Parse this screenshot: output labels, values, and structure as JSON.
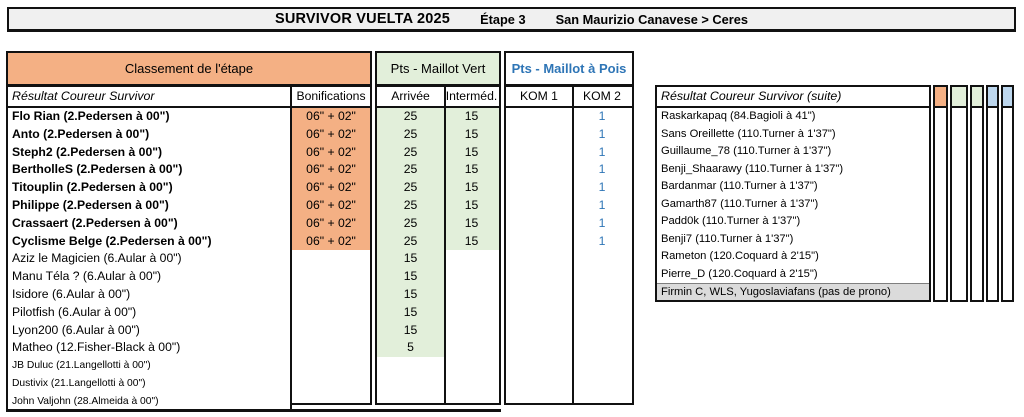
{
  "banner": {
    "title": "SURVIVOR VUELTA 2025",
    "stage_label": "Étape 3",
    "route": "San Maurizio Canavese > Ceres"
  },
  "left_table": {
    "group_headers": {
      "classement": "Classement de l'étape",
      "maillot_vert": "Pts - Maillot Vert",
      "maillot_pois": "Pts - Maillot à Pois"
    },
    "columns": {
      "resultat": "Résultat  Coureur Survivor",
      "bonifications": "Bonifications",
      "arrivee": "Arrivée",
      "intermediaire": "Interméd.",
      "kom1": "KOM 1",
      "kom2": "KOM 2"
    },
    "rows": [
      {
        "name": "Flo Rian (2.Pedersen à 00\")",
        "style": "bold",
        "bonif": "06\" + 02\"",
        "arrivee": "25",
        "intermed": "15",
        "kom1": "",
        "kom2": "1"
      },
      {
        "name": "Anto (2.Pedersen à 00\")",
        "style": "bold",
        "bonif": "06\" + 02\"",
        "arrivee": "25",
        "intermed": "15",
        "kom1": "",
        "kom2": "1"
      },
      {
        "name": "Steph2 (2.Pedersen à 00\")",
        "style": "bold",
        "bonif": "06\" + 02\"",
        "arrivee": "25",
        "intermed": "15",
        "kom1": "",
        "kom2": "1"
      },
      {
        "name": "BertholleS (2.Pedersen à 00\")",
        "style": "bold",
        "bonif": "06\" + 02\"",
        "arrivee": "25",
        "intermed": "15",
        "kom1": "",
        "kom2": "1"
      },
      {
        "name": "Titouplin (2.Pedersen à 00\")",
        "style": "bold",
        "bonif": "06\" + 02\"",
        "arrivee": "25",
        "intermed": "15",
        "kom1": "",
        "kom2": "1"
      },
      {
        "name": "Philippe (2.Pedersen à 00\")",
        "style": "bold",
        "bonif": "06\" + 02\"",
        "arrivee": "25",
        "intermed": "15",
        "kom1": "",
        "kom2": "1"
      },
      {
        "name": "Crassaert (2.Pedersen à 00\")",
        "style": "bold",
        "bonif": "06\" + 02\"",
        "arrivee": "25",
        "intermed": "15",
        "kom1": "",
        "kom2": "1"
      },
      {
        "name": "Cyclisme Belge (2.Pedersen à 00\")",
        "style": "bold",
        "bonif": "06\" + 02\"",
        "arrivee": "25",
        "intermed": "15",
        "kom1": "",
        "kom2": "1"
      },
      {
        "name": "Aziz le Magicien (6.Aular à 00\")",
        "style": "normal",
        "bonif": "",
        "arrivee": "15",
        "intermed": "",
        "kom1": "",
        "kom2": ""
      },
      {
        "name": "Manu Téla ? (6.Aular à 00\")",
        "style": "normal",
        "bonif": "",
        "arrivee": "15",
        "intermed": "",
        "kom1": "",
        "kom2": ""
      },
      {
        "name": "Isidore (6.Aular à 00\")",
        "style": "normal",
        "bonif": "",
        "arrivee": "15",
        "intermed": "",
        "kom1": "",
        "kom2": ""
      },
      {
        "name": "Pilotfish (6.Aular à 00\")",
        "style": "normal",
        "bonif": "",
        "arrivee": "15",
        "intermed": "",
        "kom1": "",
        "kom2": ""
      },
      {
        "name": "Lyon200 (6.Aular à 00\")",
        "style": "normal",
        "bonif": "",
        "arrivee": "15",
        "intermed": "",
        "kom1": "",
        "kom2": ""
      },
      {
        "name": "Matheo (12.Fisher-Black à 00\")",
        "style": "normal",
        "bonif": "",
        "arrivee": "5",
        "intermed": "",
        "kom1": "",
        "kom2": ""
      },
      {
        "name": "JB Duluc (21.Langellotti à 00\")",
        "style": "small",
        "bonif": "",
        "arrivee": "",
        "intermed": "",
        "kom1": "",
        "kom2": ""
      },
      {
        "name": "Dustivix (21.Langellotti à 00\")",
        "style": "small",
        "bonif": "",
        "arrivee": "",
        "intermed": "",
        "kom1": "",
        "kom2": ""
      },
      {
        "name": "John Valjohn (28.Almeida à 00\")",
        "style": "small",
        "bonif": "",
        "arrivee": "",
        "intermed": "",
        "kom1": "",
        "kom2": ""
      }
    ]
  },
  "right_table": {
    "header": "Résultat  Coureur Survivor (suite)",
    "rows": [
      {
        "name": "Raskarkapaq (84.Bagioli à 41\")",
        "style": "normal"
      },
      {
        "name": "Sans Oreillette (110.Turner à 1'37\")",
        "style": "normal"
      },
      {
        "name": "Guillaume_78 (110.Turner à 1'37\")",
        "style": "normal"
      },
      {
        "name": "Benji_Shaarawy (110.Turner à 1'37\")",
        "style": "normal"
      },
      {
        "name": "Bardanmar (110.Turner à 1'37\")",
        "style": "normal"
      },
      {
        "name": "Gamarth87 (110.Turner à 1'37\")",
        "style": "normal"
      },
      {
        "name": "Padd0k (110.Turner à 1'37\")",
        "style": "normal"
      },
      {
        "name": "Benji7 (110.Turner à 1'37\")",
        "style": "normal"
      },
      {
        "name": "Rameton (120.Coquard à 2'15\")",
        "style": "normal"
      },
      {
        "name": "Pierre_D (120.Coquard à 2'15\")",
        "style": "normal"
      },
      {
        "name": "Firmin C, WLS, Yugoslaviafans (pas de prono)",
        "style": "gray"
      }
    ],
    "mini_column_colors": [
      "#F4B084",
      "#E2EFDA",
      "#E2EFDA",
      "#BDD7EE",
      "#BDD7EE"
    ]
  },
  "colors": {
    "salmon": "#F4B084",
    "light_green": "#E2EFDA",
    "light_blue": "#BDD7EE",
    "blue_text": "#2E75B6",
    "gray_row": "#DBDBDB",
    "banner_bg": "#F0F0F0"
  }
}
